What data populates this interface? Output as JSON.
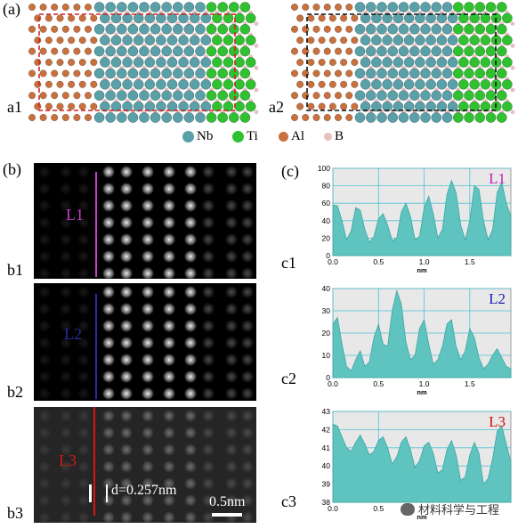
{
  "labels": {
    "a": "(a)",
    "b": "(b)",
    "c": "(c)",
    "a1": "a1",
    "a2": "a2",
    "b1": "b1",
    "b2": "b2",
    "b3": "b3",
    "c1": "c1",
    "c2": "c2",
    "c3": "c3"
  },
  "legend": [
    {
      "label": "Nb",
      "color": "#5aa0a8"
    },
    {
      "label": "Ti",
      "color": "#2fc12f"
    },
    {
      "label": "Al",
      "color": "#c9703c"
    },
    {
      "label": "B",
      "color": "#e6bfbf"
    }
  ],
  "stem_panels": [
    {
      "line_label": "L1",
      "line_color": "#c83cc8"
    },
    {
      "line_label": "L2",
      "line_color": "#2a2aa8"
    },
    {
      "line_label": "L3",
      "line_color": "#d01818",
      "d_spacing": "d=0.257nm",
      "scale_bar": "0.5nm"
    }
  ],
  "colors": {
    "frame_a1": "#d62020",
    "frame_a2": "#111111",
    "profile_fill": "#5fc4c0",
    "profile_bg": "#e8e8e8",
    "grid": "#4fc3d6"
  },
  "chart_data": [
    {
      "type": "area",
      "tag": "L1",
      "tag_color": "#c020c0",
      "xlabel": "nm",
      "xlim": [
        0,
        1.95
      ],
      "ylim": [
        0,
        100
      ],
      "x_ticks": [
        "0.0",
        "0.5",
        "1.0",
        "1.5"
      ],
      "y_ticks": [
        "0",
        "20",
        "40",
        "60",
        "80",
        "100"
      ],
      "x": [
        0.0,
        0.05,
        0.1,
        0.15,
        0.2,
        0.25,
        0.3,
        0.35,
        0.4,
        0.45,
        0.5,
        0.55,
        0.6,
        0.65,
        0.7,
        0.75,
        0.8,
        0.85,
        0.9,
        0.95,
        1.0,
        1.05,
        1.1,
        1.15,
        1.2,
        1.25,
        1.3,
        1.35,
        1.4,
        1.45,
        1.5,
        1.55,
        1.6,
        1.65,
        1.7,
        1.75,
        1.8,
        1.85,
        1.9,
        1.95
      ],
      "y": [
        58,
        57,
        40,
        18,
        28,
        55,
        52,
        30,
        15,
        22,
        42,
        48,
        35,
        17,
        20,
        50,
        60,
        45,
        18,
        22,
        55,
        68,
        48,
        20,
        30,
        70,
        86,
        72,
        35,
        18,
        40,
        80,
        76,
        40,
        18,
        30,
        72,
        84,
        60,
        45
      ]
    },
    {
      "type": "area",
      "tag": "L2",
      "tag_color": "#2020b0",
      "xlabel": "nm",
      "xlim": [
        0,
        1.95
      ],
      "ylim": [
        0,
        40
      ],
      "x_ticks": [
        "0.0",
        "0.5",
        "1.0",
        "1.5"
      ],
      "y_ticks": [
        "0",
        "10",
        "20",
        "30",
        "40"
      ],
      "x": [
        0.0,
        0.05,
        0.1,
        0.15,
        0.2,
        0.25,
        0.3,
        0.35,
        0.4,
        0.45,
        0.5,
        0.55,
        0.6,
        0.65,
        0.7,
        0.75,
        0.8,
        0.85,
        0.9,
        0.95,
        1.0,
        1.05,
        1.1,
        1.15,
        1.2,
        1.25,
        1.3,
        1.35,
        1.4,
        1.45,
        1.5,
        1.55,
        1.6,
        1.65,
        1.7,
        1.75,
        1.8,
        1.85,
        1.9,
        1.95
      ],
      "y": [
        24,
        27,
        15,
        5,
        3,
        8,
        12,
        5,
        7,
        18,
        24,
        15,
        14,
        30,
        39,
        33,
        16,
        8,
        10,
        22,
        26,
        15,
        6,
        8,
        14,
        24,
        26,
        14,
        8,
        12,
        22,
        18,
        9,
        4,
        6,
        10,
        13,
        9,
        5,
        4
      ]
    },
    {
      "type": "area",
      "tag": "L3",
      "tag_color": "#d01010",
      "xlabel": "nm",
      "xlim": [
        0,
        1.95
      ],
      "ylim": [
        38,
        43
      ],
      "x_ticks": [
        "0.0",
        "0.5"
      ],
      "y_ticks": [
        "38",
        "39",
        "40",
        "41",
        "42",
        "43"
      ],
      "x": [
        0.0,
        0.05,
        0.1,
        0.15,
        0.2,
        0.25,
        0.3,
        0.35,
        0.4,
        0.45,
        0.5,
        0.55,
        0.6,
        0.65,
        0.7,
        0.75,
        0.8,
        0.85,
        0.9,
        0.95,
        1.0,
        1.05,
        1.1,
        1.15,
        1.2,
        1.25,
        1.3,
        1.35,
        1.4,
        1.45,
        1.5,
        1.55,
        1.6,
        1.65,
        1.7,
        1.75,
        1.8,
        1.85,
        1.9,
        1.95
      ],
      "y": [
        42.3,
        42.2,
        41.6,
        41.0,
        40.8,
        41.3,
        41.7,
        41.2,
        40.6,
        40.8,
        41.4,
        41.6,
        41.0,
        40.1,
        40.5,
        41.3,
        41.6,
        40.9,
        39.9,
        40.3,
        41.1,
        41.3,
        40.7,
        39.6,
        39.8,
        40.9,
        41.4,
        40.6,
        39.2,
        39.4,
        40.6,
        41.3,
        40.7,
        39.0,
        39.3,
        40.4,
        41.9,
        42.2,
        41.2,
        40.2
      ]
    }
  ],
  "watermark": "材料科学与工程"
}
